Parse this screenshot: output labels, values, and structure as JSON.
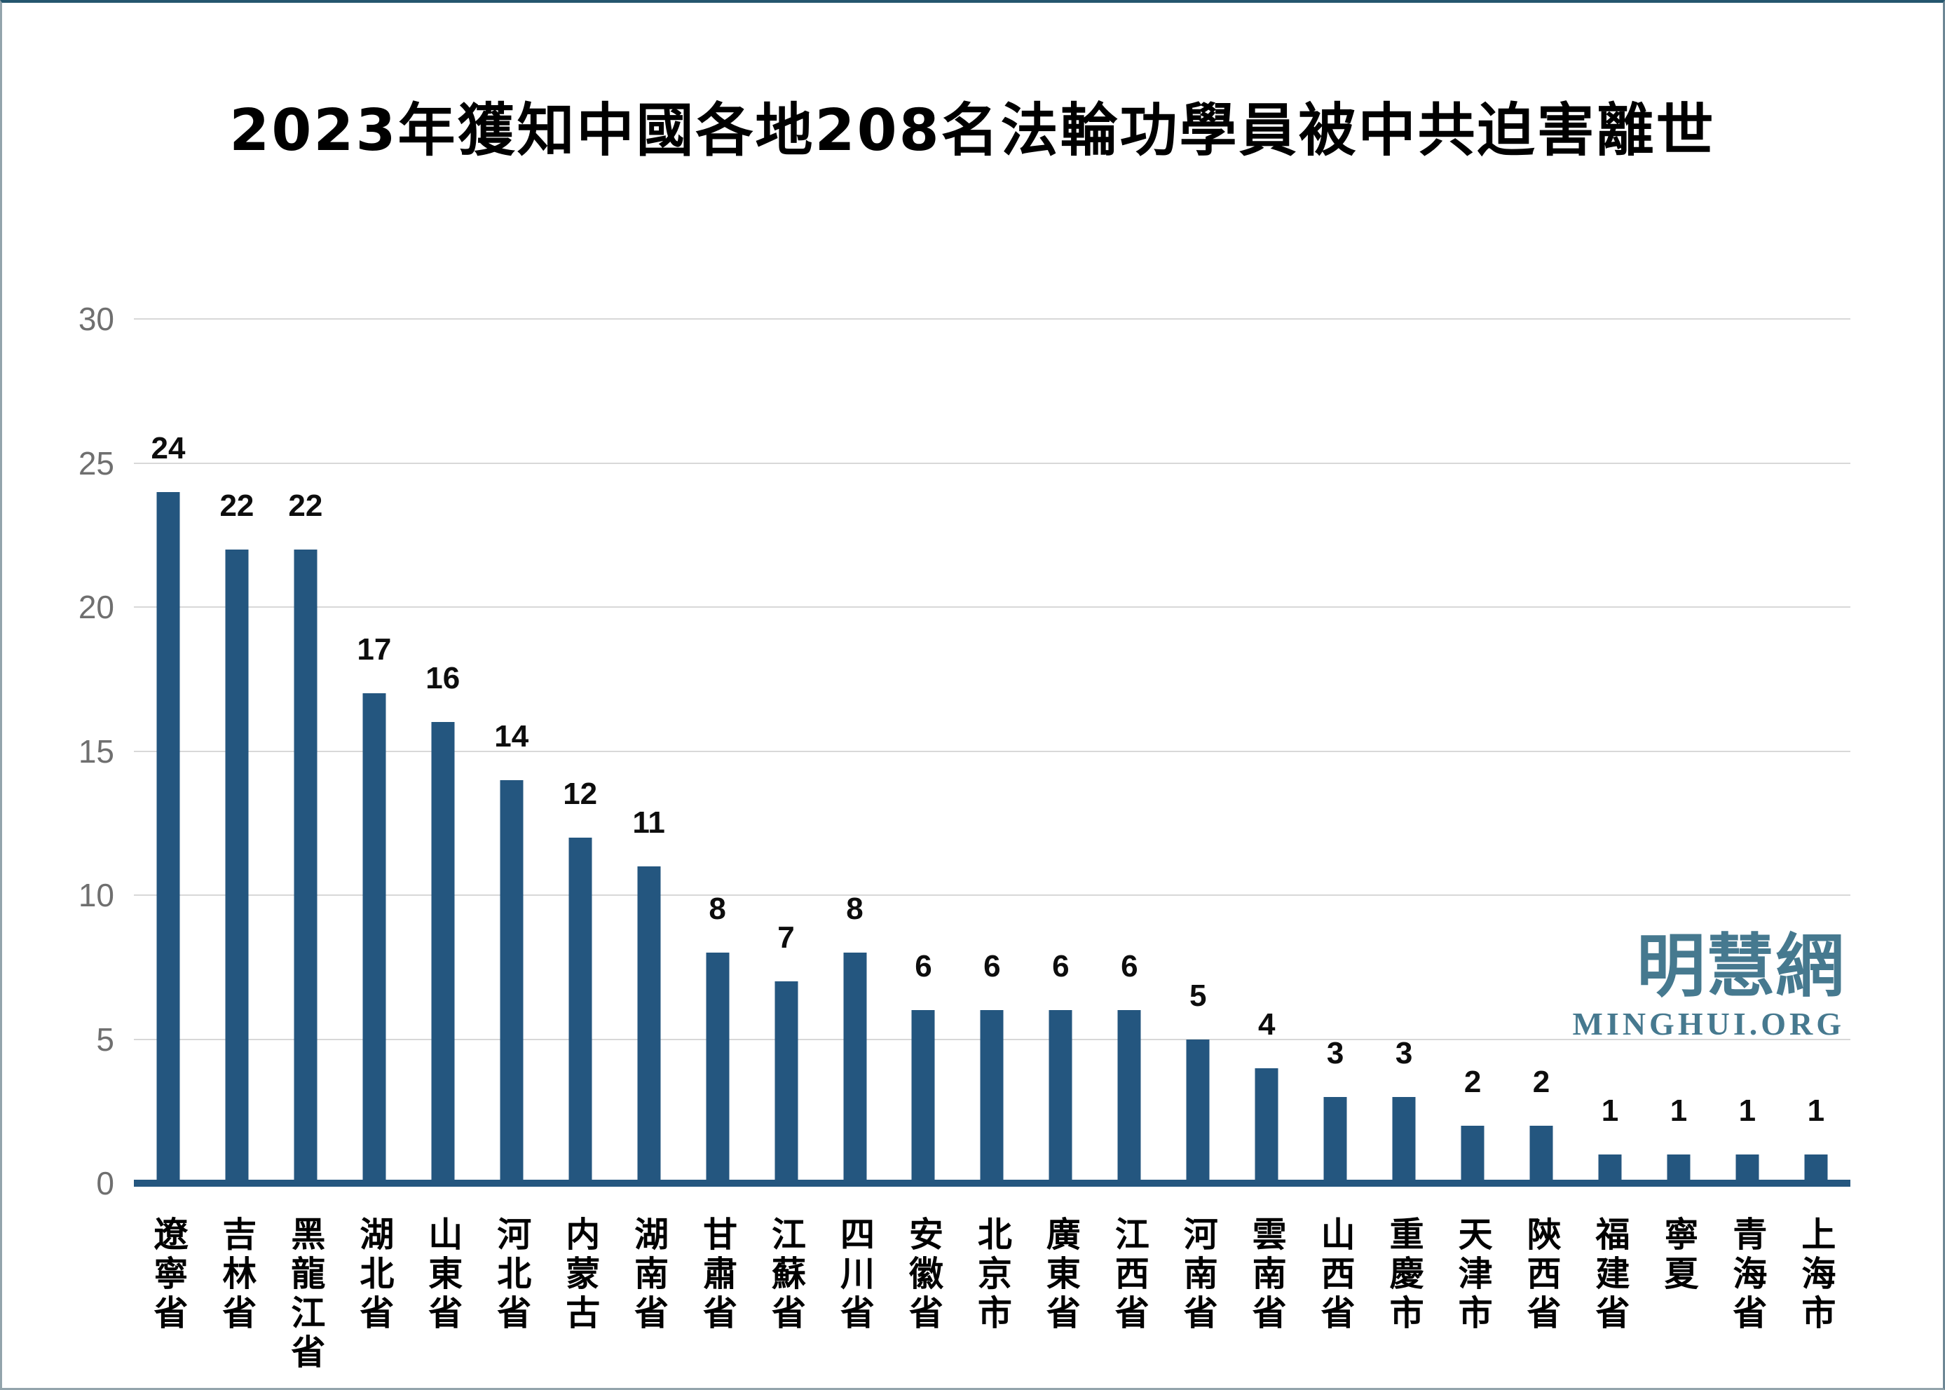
{
  "title": "2023年獲知中國各地208名法輪功學員被中共迫害離世",
  "watermark": {
    "cjk": "明慧網",
    "latin": "MINGHUI.ORG"
  },
  "colors": {
    "bar": "#24567F",
    "baseline": "#24567F",
    "gridline": "#D8D8D8",
    "axis_tick_label": "#6F6F6F",
    "value_label": "#0D0D0D",
    "title": "#000000",
    "watermark": "#46798F",
    "background": "#FFFFFF"
  },
  "chart_data": {
    "type": "bar",
    "title": "2023年獲知中國各地208名法輪功學員被中共迫害離世",
    "categories": [
      "遼寧省",
      "吉林省",
      "黑龍江省",
      "湖北省",
      "山東省",
      "河北省",
      "内蒙古",
      "湖南省",
      "甘肅省",
      "江蘇省",
      "四川省",
      "安徽省",
      "北京市",
      "廣東省",
      "江西省",
      "河南省",
      "雲南省",
      "山西省",
      "重慶市",
      "天津市",
      "陝西省",
      "福建省",
      "寧夏",
      "青海省",
      "上海市"
    ],
    "values": [
      24,
      22,
      22,
      17,
      16,
      14,
      12,
      11,
      8,
      7,
      8,
      6,
      6,
      6,
      6,
      5,
      4,
      3,
      3,
      2,
      2,
      1,
      1,
      1,
      1
    ],
    "total": 208,
    "xlabel": "",
    "ylabel": "",
    "yticks": [
      0,
      5,
      10,
      15,
      20,
      25,
      30
    ],
    "ylim": [
      0,
      30
    ],
    "grid": "horizontal",
    "legend": "none",
    "value_labels": "above-bars"
  }
}
